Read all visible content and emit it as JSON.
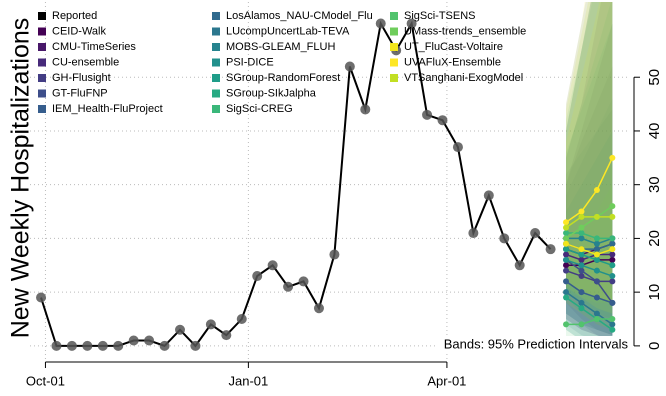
{
  "chart_data": {
    "type": "line",
    "y_label": "New Weekly Hospitalizations",
    "annotation": "Bands: 95% Prediction Intervals",
    "xlim": [
      "Sep-24",
      "Jun-23"
    ],
    "xticks": [
      "Oct-01",
      "Jan-01",
      "Apr-01"
    ],
    "ylim": [
      -3,
      64
    ],
    "yticks": [
      0,
      10,
      20,
      30,
      40,
      50
    ],
    "grid": true,
    "legend": "top-left",
    "series": [
      {
        "name": "Reported",
        "color": "#000000",
        "x": [
          "Sep-29",
          "Oct-06",
          "Oct-13",
          "Oct-20",
          "Oct-27",
          "Nov-03",
          "Nov-10",
          "Nov-17",
          "Nov-24",
          "Dec-01",
          "Dec-08",
          "Dec-15",
          "Dec-22",
          "Dec-29",
          "Jan-05",
          "Jan-12",
          "Jan-19",
          "Jan-26",
          "Feb-02",
          "Feb-09",
          "Feb-16",
          "Feb-23",
          "Mar-02",
          "Mar-09",
          "Mar-16",
          "Mar-23",
          "Mar-30",
          "Apr-06",
          "Apr-13",
          "Apr-20",
          "Apr-27",
          "May-04",
          "May-11",
          "May-18"
        ],
        "values": [
          9,
          0,
          0,
          0,
          0,
          0,
          1,
          1,
          0,
          3,
          0,
          4,
          2,
          5,
          13,
          15,
          11,
          12,
          7,
          17,
          52,
          44,
          60,
          55,
          60,
          43,
          42,
          37,
          21,
          28,
          20,
          15,
          21,
          18
        ]
      },
      {
        "name": "CEID-Walk",
        "color": "#440154",
        "x": [
          "May-25",
          "Jun-01",
          "Jun-08",
          "Jun-15"
        ],
        "values": [
          15,
          15,
          16,
          16
        ],
        "lower": [
          5,
          3,
          2,
          1
        ],
        "upper": [
          30,
          40,
          50,
          60
        ]
      },
      {
        "name": "CMU-TimeSeries",
        "color": "#481769",
        "x": [
          "May-25",
          "Jun-01",
          "Jun-08",
          "Jun-15"
        ],
        "values": [
          18,
          17,
          18,
          19
        ],
        "lower": [
          8,
          5,
          3,
          2
        ],
        "upper": [
          35,
          45,
          60,
          75
        ]
      },
      {
        "name": "CU-ensemble",
        "color": "#472A7A",
        "x": [
          "May-25",
          "Jun-01",
          "Jun-08",
          "Jun-15"
        ],
        "values": [
          17,
          16,
          17,
          17
        ],
        "lower": [
          6,
          4,
          3,
          2
        ],
        "upper": [
          40,
          55,
          70,
          85
        ]
      },
      {
        "name": "GH-Flusight",
        "color": "#433D84",
        "x": [
          "May-25",
          "Jun-01",
          "Jun-08",
          "Jun-15"
        ],
        "values": [
          14,
          13,
          12,
          12
        ],
        "lower": [
          5,
          3,
          2,
          1
        ],
        "upper": [
          30,
          38,
          45,
          52
        ]
      },
      {
        "name": "GT-FluFNP",
        "color": "#3D4E8A",
        "x": [
          "May-25",
          "Jun-01",
          "Jun-08",
          "Jun-15"
        ],
        "values": [
          16,
          14,
          12,
          8
        ],
        "lower": [
          6,
          4,
          2,
          0
        ],
        "upper": [
          32,
          36,
          40,
          44
        ]
      },
      {
        "name": "IEM_Health-FluProject",
        "color": "#365D8D",
        "x": [
          "May-25",
          "Jun-01",
          "Jun-08",
          "Jun-15"
        ],
        "values": [
          12,
          10,
          9,
          8
        ],
        "lower": [
          4,
          2,
          1,
          0
        ],
        "upper": [
          28,
          34,
          40,
          46
        ]
      },
      {
        "name": "LosAlamos_NAU-CModel_Flu",
        "color": "#306A8E",
        "x": [
          "May-25",
          "Jun-01",
          "Jun-08",
          "Jun-15"
        ],
        "values": [
          19,
          18,
          18,
          19
        ],
        "lower": [
          9,
          6,
          4,
          3
        ],
        "upper": [
          45,
          60,
          75,
          90
        ]
      },
      {
        "name": "LUcompUncertLab-TEVA",
        "color": "#2B778E",
        "x": [
          "May-25",
          "Jun-01",
          "Jun-08",
          "Jun-15"
        ],
        "values": [
          10,
          8,
          6,
          4
        ],
        "lower": [
          3,
          1,
          0,
          0
        ],
        "upper": [
          25,
          30,
          35,
          40
        ]
      },
      {
        "name": "MOBS-GLEAM_FLUH",
        "color": "#26838E",
        "x": [
          "May-25",
          "Jun-01",
          "Jun-08",
          "Jun-15"
        ],
        "values": [
          20,
          20,
          19,
          20
        ],
        "lower": [
          10,
          8,
          6,
          5
        ],
        "upper": [
          40,
          55,
          70,
          85
        ]
      },
      {
        "name": "PSI-DICE",
        "color": "#21908C",
        "x": [
          "May-25",
          "Jun-01",
          "Jun-08",
          "Jun-15"
        ],
        "values": [
          16,
          15,
          14,
          13
        ],
        "lower": [
          6,
          4,
          3,
          2
        ],
        "upper": [
          35,
          45,
          55,
          65
        ]
      },
      {
        "name": "SGroup-RandomForest",
        "color": "#1F9D89",
        "x": [
          "May-25",
          "Jun-01",
          "Jun-08",
          "Jun-15"
        ],
        "values": [
          18,
          17,
          16,
          15
        ],
        "lower": [
          8,
          6,
          4,
          3
        ],
        "upper": [
          36,
          44,
          52,
          60
        ]
      },
      {
        "name": "SGroup-SIkJalpha",
        "color": "#27AA83",
        "x": [
          "May-25",
          "Jun-01",
          "Jun-08",
          "Jun-15"
        ],
        "values": [
          9,
          7,
          5,
          3
        ],
        "lower": [
          3,
          1,
          0,
          0
        ],
        "upper": [
          22,
          26,
          30,
          34
        ]
      },
      {
        "name": "SigSci-CREG",
        "color": "#3AB77A",
        "x": [
          "May-25",
          "Jun-01",
          "Jun-08",
          "Jun-15"
        ],
        "values": [
          21,
          21,
          20,
          20
        ],
        "lower": [
          10,
          8,
          6,
          5
        ],
        "upper": [
          42,
          55,
          68,
          80
        ]
      },
      {
        "name": "SigSci-TSENS",
        "color": "#52C36D",
        "x": [
          "May-25",
          "Jun-01",
          "Jun-08",
          "Jun-15"
        ],
        "values": [
          4,
          4,
          5,
          5
        ],
        "lower": [
          1,
          0,
          0,
          0
        ],
        "upper": [
          15,
          20,
          25,
          30
        ]
      },
      {
        "name": "UMass-trends_ensemble",
        "color": "#6FCD5C",
        "x": [
          "May-25",
          "Jun-01",
          "Jun-08",
          "Jun-15"
        ],
        "values": [
          20,
          22,
          24,
          26
        ],
        "lower": [
          10,
          9,
          8,
          8
        ],
        "upper": [
          40,
          55,
          70,
          90
        ]
      },
      {
        "name": "UT_FluCast-Voltaire",
        "color": "#F2E51D",
        "x": [
          "May-25",
          "Jun-01",
          "Jun-08",
          "Jun-15"
        ],
        "values": [
          19,
          18,
          17,
          18
        ],
        "lower": [
          8,
          6,
          4,
          3
        ],
        "upper": [
          38,
          50,
          62,
          75
        ]
      },
      {
        "name": "UVAFluX-Ensemble",
        "color": "#FDE725",
        "x": [
          "May-25",
          "Jun-01",
          "Jun-08",
          "Jun-15"
        ],
        "values": [
          23,
          25,
          29,
          35
        ],
        "lower": [
          12,
          10,
          9,
          8
        ],
        "upper": [
          45,
          60,
          80,
          100
        ]
      },
      {
        "name": "VTSanghani-ExogModel",
        "color": "#C2DF23",
        "x": [
          "May-25",
          "Jun-01",
          "Jun-08",
          "Jun-15"
        ],
        "values": [
          22,
          24,
          24,
          24
        ],
        "lower": [
          11,
          9,
          7,
          6
        ],
        "upper": [
          44,
          58,
          72,
          86
        ]
      }
    ]
  }
}
